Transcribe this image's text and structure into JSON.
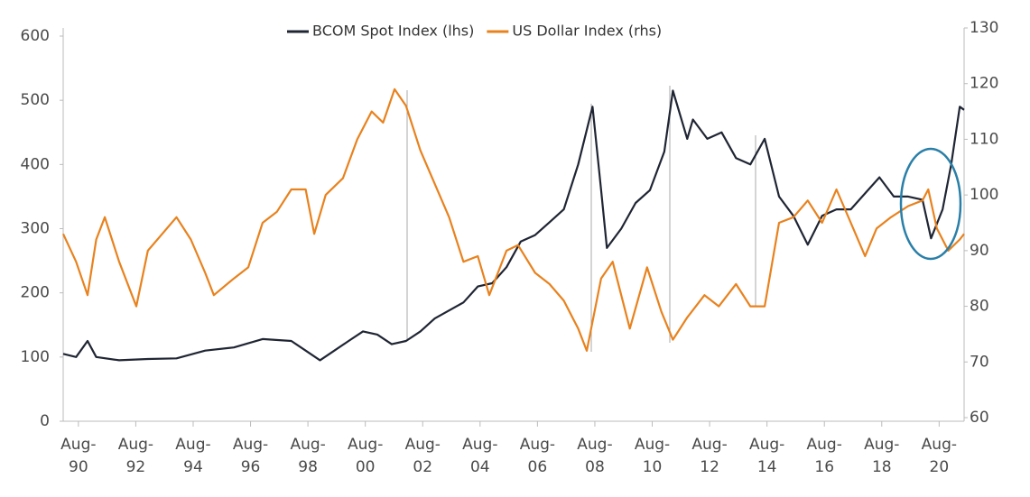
{
  "chart_data": {
    "type": "line",
    "xlim": [
      1990.05,
      2021.45
    ],
    "xticks": [
      {
        "value": 1990.58,
        "label": "Aug-90"
      },
      {
        "value": 1992.58,
        "label": "Aug-92"
      },
      {
        "value": 1994.58,
        "label": "Aug-94"
      },
      {
        "value": 1996.58,
        "label": "Aug-96"
      },
      {
        "value": 1998.58,
        "label": "Aug-98"
      },
      {
        "value": 2000.58,
        "label": "Aug-00"
      },
      {
        "value": 2002.58,
        "label": "Aug-02"
      },
      {
        "value": 2004.58,
        "label": "Aug-04"
      },
      {
        "value": 2006.58,
        "label": "Aug-06"
      },
      {
        "value": 2008.58,
        "label": "Aug-08"
      },
      {
        "value": 2010.58,
        "label": "Aug-10"
      },
      {
        "value": 2012.58,
        "label": "Aug-12"
      },
      {
        "value": 2014.58,
        "label": "Aug-14"
      },
      {
        "value": 2016.58,
        "label": "Aug-16"
      },
      {
        "value": 2018.58,
        "label": "Aug-18"
      },
      {
        "value": 2020.58,
        "label": "Aug-20"
      }
    ],
    "ylim": [
      0,
      600
    ],
    "yticks": [
      0,
      100,
      200,
      300,
      400,
      500,
      600
    ],
    "y2lim": [
      60,
      130
    ],
    "y2ticks": [
      60,
      70,
      80,
      90,
      100,
      110,
      120,
      130
    ],
    "legend": "top",
    "series": [
      {
        "name": "BCOM Spot Index (lhs)",
        "color": "#1f2533",
        "axis": "y",
        "x": [
          1990.05,
          1990.5,
          1990.9,
          1991.2,
          1992,
          1993,
          1994,
          1995,
          1996,
          1997,
          1998,
          1998.5,
          1999,
          1999.5,
          2000,
          2000.5,
          2001,
          2001.5,
          2002,
          2002.5,
          2003,
          2004,
          2004.5,
          2005,
          2005.5,
          2006,
          2006.5,
          2007,
          2007.5,
          2008,
          2008.5,
          2008.8,
          2009,
          2009.5,
          2010,
          2010.5,
          2011,
          2011.3,
          2011.8,
          2012,
          2012.5,
          2013,
          2013.5,
          2014,
          2014.5,
          2015,
          2015.5,
          2016,
          2016.5,
          2017,
          2017.5,
          2018,
          2018.5,
          2019,
          2019.5,
          2020,
          2020.3,
          2020.7,
          2021,
          2021.3,
          2021.45
        ],
        "values": [
          105,
          100,
          125,
          100,
          95,
          97,
          98,
          110,
          115,
          128,
          125,
          110,
          95,
          110,
          125,
          140,
          135,
          120,
          125,
          140,
          160,
          185,
          210,
          215,
          240,
          280,
          290,
          310,
          330,
          400,
          490,
          360,
          270,
          300,
          340,
          360,
          420,
          515,
          440,
          470,
          440,
          450,
          410,
          400,
          440,
          350,
          320,
          275,
          320,
          330,
          330,
          355,
          380,
          350,
          350,
          345,
          285,
          330,
          400,
          490,
          485
        ]
      },
      {
        "name": "US Dollar Index (rhs)",
        "color": "#e8821e",
        "axis": "y2",
        "x": [
          1990.05,
          1990.5,
          1990.9,
          1991.2,
          1991.5,
          1992,
          1992.6,
          1993,
          1993.5,
          1994,
          1994.5,
          1995,
          1995.3,
          1996,
          1996.5,
          1997,
          1997.5,
          1998,
          1998.5,
          1998.8,
          1999.2,
          1999.8,
          2000.3,
          2000.8,
          2001.2,
          2001.6,
          2002,
          2002.5,
          2003,
          2003.5,
          2004,
          2004.5,
          2004.9,
          2005.5,
          2005.9,
          2006.5,
          2007,
          2007.5,
          2008,
          2008.3,
          2008.8,
          2009.2,
          2009.8,
          2010.4,
          2010.9,
          2011.3,
          2011.8,
          2012.4,
          2012.9,
          2013.5,
          2014,
          2014.5,
          2015,
          2015.5,
          2016,
          2016.5,
          2017,
          2017.5,
          2018,
          2018.4,
          2018.9,
          2019.5,
          2020,
          2020.2,
          2020.5,
          2020.9,
          2021.3,
          2021.45
        ],
        "values": [
          93,
          88,
          82,
          92,
          96,
          88,
          80,
          90,
          93,
          96,
          92,
          86,
          82,
          85,
          87,
          95,
          97,
          101,
          101,
          93,
          100,
          103,
          110,
          115,
          113,
          119,
          116,
          108,
          102,
          96,
          88,
          89,
          82,
          90,
          91,
          86,
          84,
          81,
          76,
          72,
          85,
          88,
          76,
          87,
          79,
          74,
          78,
          82,
          80,
          84,
          80,
          80,
          95,
          96,
          99,
          95,
          101,
          95,
          89,
          94,
          96,
          98,
          99,
          101,
          94,
          90,
          92,
          93
        ]
      }
    ]
  }
}
